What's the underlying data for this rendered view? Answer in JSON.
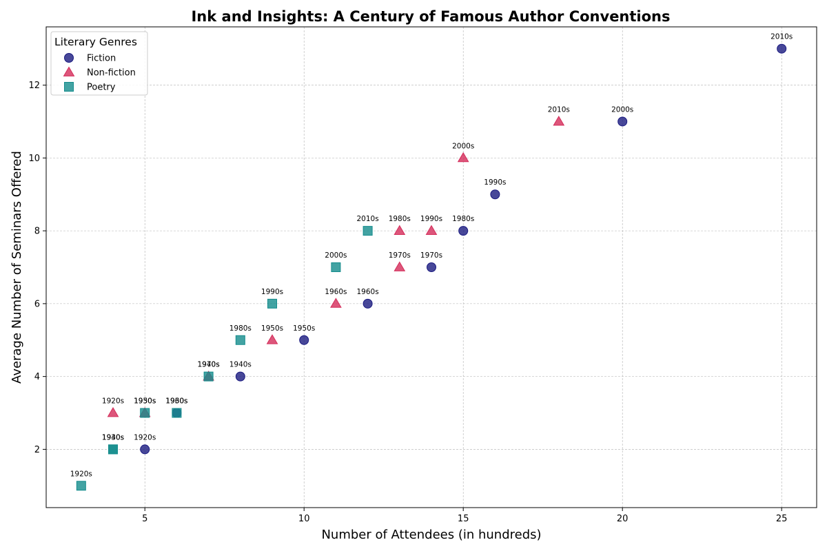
{
  "chart_data": {
    "type": "scatter",
    "title": "Ink and Insights: A Century of Famous Author Conventions",
    "xlabel": "Number of Attendees (in hundreds)",
    "ylabel": "Average Number of Seminars Offered",
    "xlim": [
      1.9,
      26.1
    ],
    "ylim": [
      0.4,
      13.6
    ],
    "xticks": [
      5,
      10,
      15,
      20,
      25
    ],
    "yticks": [
      2,
      4,
      6,
      8,
      10,
      12
    ],
    "grid": true,
    "legend": {
      "title": "Literary Genres",
      "placement": "top-left"
    },
    "series": [
      {
        "name": "Fiction",
        "marker": "circle",
        "color": "#1a1a80",
        "points": [
          {
            "x": 5,
            "y": 2,
            "label": "1920s"
          },
          {
            "x": 6,
            "y": 3,
            "label": "1930s"
          },
          {
            "x": 8,
            "y": 4,
            "label": "1940s"
          },
          {
            "x": 10,
            "y": 5,
            "label": "1950s"
          },
          {
            "x": 12,
            "y": 6,
            "label": "1960s"
          },
          {
            "x": 14,
            "y": 7,
            "label": "1970s"
          },
          {
            "x": 15,
            "y": 8,
            "label": "1980s"
          },
          {
            "x": 16,
            "y": 9,
            "label": "1990s"
          },
          {
            "x": 20,
            "y": 11,
            "label": "2000s"
          },
          {
            "x": 25,
            "y": 13,
            "label": "2010s"
          }
        ]
      },
      {
        "name": "Non-fiction",
        "marker": "triangle",
        "color": "#d42c5a",
        "points": [
          {
            "x": 4,
            "y": 3,
            "label": "1920s"
          },
          {
            "x": 5,
            "y": 3,
            "label": "1930s"
          },
          {
            "x": 7,
            "y": 4,
            "label": "1940s"
          },
          {
            "x": 9,
            "y": 5,
            "label": "1950s"
          },
          {
            "x": 11,
            "y": 6,
            "label": "1960s"
          },
          {
            "x": 13,
            "y": 7,
            "label": "1970s"
          },
          {
            "x": 13,
            "y": 8,
            "label": "1980s"
          },
          {
            "x": 14,
            "y": 8,
            "label": "1990s"
          },
          {
            "x": 15,
            "y": 10,
            "label": "2000s"
          },
          {
            "x": 18,
            "y": 11,
            "label": "2010s"
          }
        ]
      },
      {
        "name": "Poetry",
        "marker": "square",
        "color": "#148c8c",
        "points": [
          {
            "x": 3,
            "y": 1,
            "label": "1920s"
          },
          {
            "x": 4,
            "y": 2,
            "label": "1930s"
          },
          {
            "x": 4,
            "y": 2,
            "label": "1940s"
          },
          {
            "x": 5,
            "y": 3,
            "label": "1950s"
          },
          {
            "x": 6,
            "y": 3,
            "label": "1960s"
          },
          {
            "x": 7,
            "y": 4,
            "label": "1970s"
          },
          {
            "x": 8,
            "y": 5,
            "label": "1980s"
          },
          {
            "x": 9,
            "y": 6,
            "label": "1990s"
          },
          {
            "x": 11,
            "y": 7,
            "label": "2000s"
          },
          {
            "x": 12,
            "y": 8,
            "label": "2010s"
          }
        ]
      }
    ]
  }
}
